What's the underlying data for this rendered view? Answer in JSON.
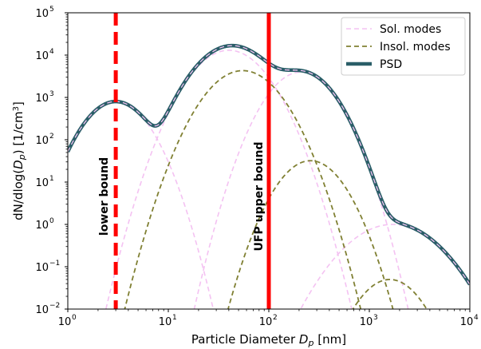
{
  "chart_data": {
    "type": "line",
    "title": "",
    "xlabel": "Particle Diameter D_p [nm]",
    "ylabel": "dN/dlog(D_p) [1/cm^3]",
    "xscale": "log",
    "yscale": "log",
    "xlim": [
      1,
      10000
    ],
    "ylim": [
      0.01,
      100000
    ],
    "grid": false,
    "legend_position": "top-right",
    "x_ticks": [
      {
        "value": 1,
        "base": "10",
        "exp": "0"
      },
      {
        "value": 10,
        "base": "10",
        "exp": "1"
      },
      {
        "value": 100,
        "base": "10",
        "exp": "2"
      },
      {
        "value": 1000,
        "base": "10",
        "exp": "3"
      },
      {
        "value": 10000,
        "base": "10",
        "exp": "4"
      }
    ],
    "y_ticks": [
      {
        "value": 0.01,
        "base": "10",
        "exp": "−2"
      },
      {
        "value": 0.1,
        "base": "10",
        "exp": "−1"
      },
      {
        "value": 1,
        "base": "10",
        "exp": "0"
      },
      {
        "value": 10,
        "base": "10",
        "exp": "1"
      },
      {
        "value": 100,
        "base": "10",
        "exp": "2"
      },
      {
        "value": 1000,
        "base": "10",
        "exp": "3"
      },
      {
        "value": 10000,
        "base": "10",
        "exp": "4"
      },
      {
        "value": 100000,
        "base": "10",
        "exp": "5"
      }
    ],
    "soluble_modes": [
      {
        "n": 800,
        "dg": 3.0,
        "sigma": 1.6
      },
      {
        "n": 13000,
        "dg": 40,
        "sigma": 1.7
      },
      {
        "n": 4000,
        "dg": 210,
        "sigma": 1.62
      },
      {
        "n": 1.0,
        "dg": 1700,
        "sigma": 2.0
      }
    ],
    "insoluble_modes": [
      {
        "n": 4300,
        "dg": 55,
        "sigma": 1.7
      },
      {
        "n": 32,
        "dg": 260,
        "sigma": 1.6
      },
      {
        "n": 0.05,
        "dg": 1600,
        "sigma": 1.6
      }
    ],
    "series": [
      {
        "name": "Sol. modes",
        "color": "#f4c2f2",
        "style": "dashed"
      },
      {
        "name": "Insol. modes",
        "color": "#808033",
        "style": "dashed"
      },
      {
        "name": "PSD",
        "color": "#2a5e68",
        "style": "solid"
      }
    ],
    "annotations": [
      {
        "label": "lower bound",
        "x": 3,
        "color": "#ff0000",
        "style": "dashed"
      },
      {
        "label": "UFP upper bound",
        "x": 100,
        "color": "#ff0000",
        "style": "solid"
      }
    ]
  }
}
